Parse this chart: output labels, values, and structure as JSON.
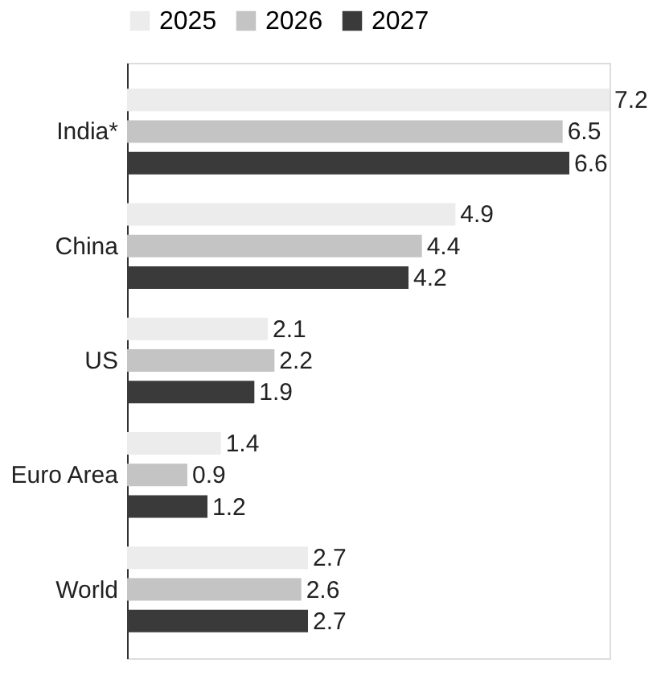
{
  "chart_data": {
    "type": "bar",
    "orientation": "horizontal",
    "categories": [
      "India*",
      "China",
      "US",
      "Euro Area",
      "World"
    ],
    "series": [
      {
        "name": "2025",
        "color": "#ececec",
        "values": [
          7.2,
          4.9,
          2.1,
          1.4,
          2.7
        ]
      },
      {
        "name": "2026",
        "color": "#c4c4c4",
        "values": [
          6.5,
          4.4,
          2.2,
          0.9,
          2.6
        ]
      },
      {
        "name": "2027",
        "color": "#3a3a3a",
        "values": [
          6.6,
          4.2,
          1.9,
          1.2,
          2.7
        ]
      }
    ],
    "data_labels": true,
    "legend": "top",
    "grid": false,
    "tick_labels": "y"
  }
}
